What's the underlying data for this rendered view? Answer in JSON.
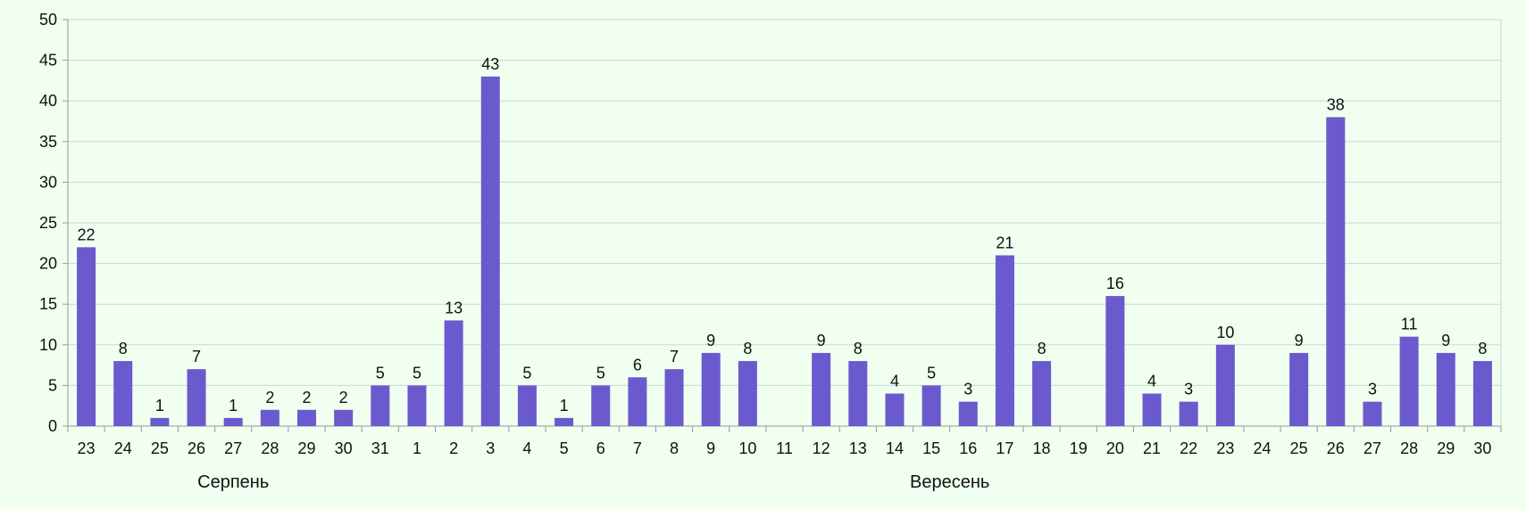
{
  "chart_data": {
    "type": "bar",
    "categories": [
      "23",
      "24",
      "25",
      "26",
      "27",
      "28",
      "29",
      "30",
      "31",
      "1",
      "2",
      "3",
      "4",
      "5",
      "6",
      "7",
      "8",
      "9",
      "10",
      "11",
      "12",
      "13",
      "14",
      "15",
      "16",
      "17",
      "18",
      "19",
      "20",
      "21",
      "22",
      "23",
      "24",
      "25",
      "26",
      "27",
      "28",
      "29",
      "30"
    ],
    "values": [
      22,
      8,
      1,
      7,
      1,
      2,
      2,
      2,
      5,
      5,
      13,
      43,
      5,
      1,
      5,
      6,
      7,
      9,
      8,
      null,
      9,
      8,
      4,
      5,
      3,
      21,
      8,
      null,
      16,
      4,
      3,
      10,
      null,
      9,
      38,
      3,
      11,
      9,
      8
    ],
    "groups": [
      {
        "label": "Серпень",
        "start": 0,
        "end": 8
      },
      {
        "label": "Вересень",
        "start": 9,
        "end": 38
      }
    ],
    "ylim": [
      0,
      50
    ],
    "yticks": [
      0,
      5,
      10,
      15,
      20,
      25,
      30,
      35,
      40,
      45,
      50
    ],
    "grid": true,
    "title": "",
    "xlabel": "",
    "ylabel": "",
    "bar_color": "#6a5acd",
    "grid_color": "#c8d8d0",
    "background": "#f0fff0"
  }
}
